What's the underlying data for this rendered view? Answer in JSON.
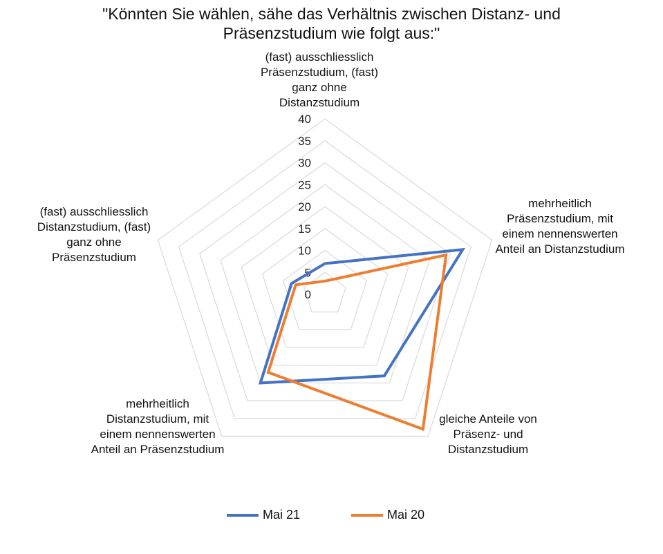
{
  "chart_data": {
    "type": "radar",
    "title": [
      "\"Könnten Sie wählen, sähe das Verhältnis zwischen Distanz- und",
      "Präsenzstudium wie folgt aus:\""
    ],
    "categories": [
      "(fast) ausschliesslich Präsenzstudium, (fast) ganz ohne Distanzstudium",
      "mehrheitlich Präsenzstudium, mit einem nennenswerten Anteil an Distanzstudium",
      "gleiche Anteile von Präsenz- und Distanzstudium",
      "mehrheitlich Distanzstudium, mit einem nennenswerten Anteil an Präsenzstudium",
      "(fast) ausschliesslich Distanzstudium, (fast) ganz ohne Präsenzstudium"
    ],
    "r_ticks": [
      "0",
      "5",
      "10",
      "15",
      "20",
      "25",
      "30",
      "35",
      "40"
    ],
    "rlim": [
      0,
      40
    ],
    "grid": true,
    "legend_position": "bottom",
    "series": [
      {
        "name": "Mai 21",
        "color": "#4472C4",
        "values": [
          7,
          33,
          23,
          25,
          8
        ]
      },
      {
        "name": "Mai 20",
        "color": "#ED7D31",
        "values": [
          3,
          29,
          38,
          22,
          7
        ]
      }
    ]
  }
}
